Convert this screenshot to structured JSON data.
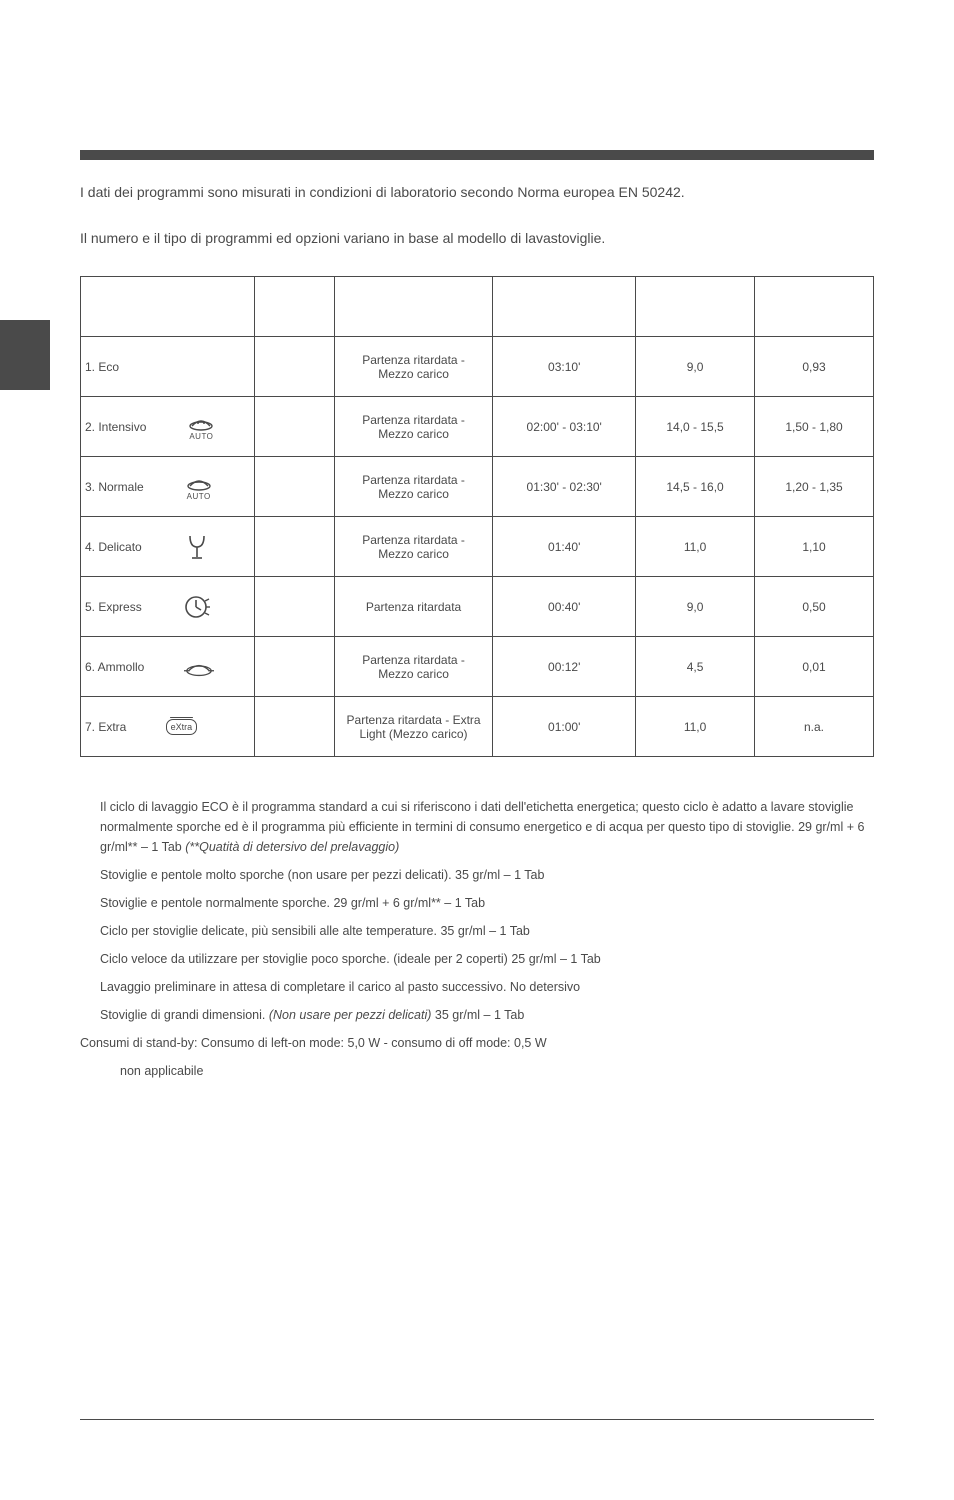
{
  "intro1": "I dati dei programmi sono misurati in condizioni di laboratorio secondo Norma europea EN 50242.",
  "intro2": "Il numero e il tipo di programmi ed opzioni variano in base al modello di lavastoviglie.",
  "table": {
    "rows": [
      {
        "label": "1. Eco",
        "icon": "eco",
        "options": "Partenza ritardata -\nMezzo carico",
        "duration": "03:10'",
        "water": "9,0",
        "energy": "0,93"
      },
      {
        "label": "2. Intensivo",
        "icon": "intensivo",
        "options": "Partenza ritardata -\nMezzo carico",
        "duration": "02:00' - 03:10'",
        "water": "14,0 - 15,5",
        "energy": "1,50 - 1,80"
      },
      {
        "label": "3. Normale",
        "icon": "normale",
        "options": "Partenza ritardata -\nMezzo carico",
        "duration": "01:30' - 02:30'",
        "water": "14,5 - 16,0",
        "energy": "1,20 - 1,35"
      },
      {
        "label": "4. Delicato",
        "icon": "delicato",
        "options": "Partenza ritardata -\nMezzo carico",
        "duration": "01:40'",
        "water": "11,0",
        "energy": "1,10"
      },
      {
        "label": "5. Express",
        "icon": "express",
        "options": "Partenza ritardata",
        "duration": "00:40'",
        "water": "9,0",
        "energy": "0,50"
      },
      {
        "label": "6. Ammollo",
        "icon": "ammollo",
        "options": "Partenza ritardata -\nMezzo carico",
        "duration": "00:12'",
        "water": "4,5",
        "energy": "0,01"
      },
      {
        "label": "7. Extra",
        "icon": "extra",
        "options": "Partenza ritardata - Extra\nLight (Mezzo carico)",
        "duration": "01:00'",
        "water": "11,0",
        "energy": "n.a."
      }
    ]
  },
  "autoLabel": "AUTO",
  "extraIconLabel": "eXtra",
  "notes": {
    "n1a": "Il ciclo di lavaggio ECO è il programma standard a cui si riferiscono i dati dell'etichetta energetica; questo ciclo è adatto a lavare stoviglie normalmente sporche ed è il programma più efficiente in termini di consumo energetico e di acqua per questo tipo di stoviglie. 29 gr/ml + 6 gr/ml** – 1 Tab  ",
    "n1b": "(**Quatità di detersivo del prelavaggio)",
    "n2": "Stoviglie e pentole molto sporche (non usare per pezzi delicati). 35 gr/ml – 1 Tab",
    "n3": "Stoviglie e pentole normalmente sporche. 29 gr/ml + 6 gr/ml** – 1 Tab",
    "n4": "Ciclo per stoviglie delicate, più sensibili alle alte temperature. 35 gr/ml – 1 Tab",
    "n5": "Ciclo veloce da utilizzare per stoviglie poco sporche. (ideale per 2 coperti) 25 gr/ml – 1 Tab",
    "n6": "Lavaggio preliminare in attesa di completare il carico al pasto successivo.  No detersivo",
    "n7a": "Stoviglie di grandi dimensioni. ",
    "n7b": "(Non usare per pezzi delicati)",
    "n7c": "  35 gr/ml – 1 Tab",
    "n8": "Consumi di stand-by: Consumo di left-on mode: 5,0 W - consumo di off mode: 0,5 W",
    "n9": "non applicabile"
  },
  "colors": {
    "stroke": "#4a4a4a"
  }
}
